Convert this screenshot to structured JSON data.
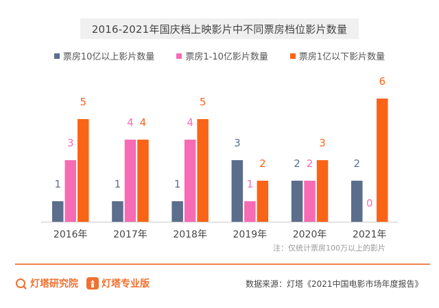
{
  "chart_data": {
    "type": "bar",
    "title": "2016-2021年国庆档上映影片中不同票房档位影片数量",
    "categories": [
      "2016年",
      "2017年",
      "2018年",
      "2019年",
      "2020年",
      "2021年"
    ],
    "series": [
      {
        "name": "票房10亿以上影片数量",
        "color": "#5b6e8c",
        "values": [
          1,
          1,
          1,
          3,
          2,
          2
        ]
      },
      {
        "name": "票房1-10亿影片数量",
        "color": "#f76bb5",
        "values": [
          3,
          4,
          4,
          1,
          2,
          0
        ]
      },
      {
        "name": "票房1亿以下影片数量",
        "color": "#fa6417",
        "values": [
          5,
          4,
          5,
          2,
          3,
          6
        ]
      }
    ],
    "xlabel": "",
    "ylabel": "",
    "ylim": [
      0,
      6
    ],
    "grid": false,
    "legend_position": "top",
    "data_labels": true
  },
  "note": "注：仅统计票房100万以上的影片",
  "footer": {
    "brand1": "灯塔研究院",
    "brand2": "灯塔专业版",
    "source": "数据来源：灯塔《2021中国电影市场年度报告》"
  }
}
